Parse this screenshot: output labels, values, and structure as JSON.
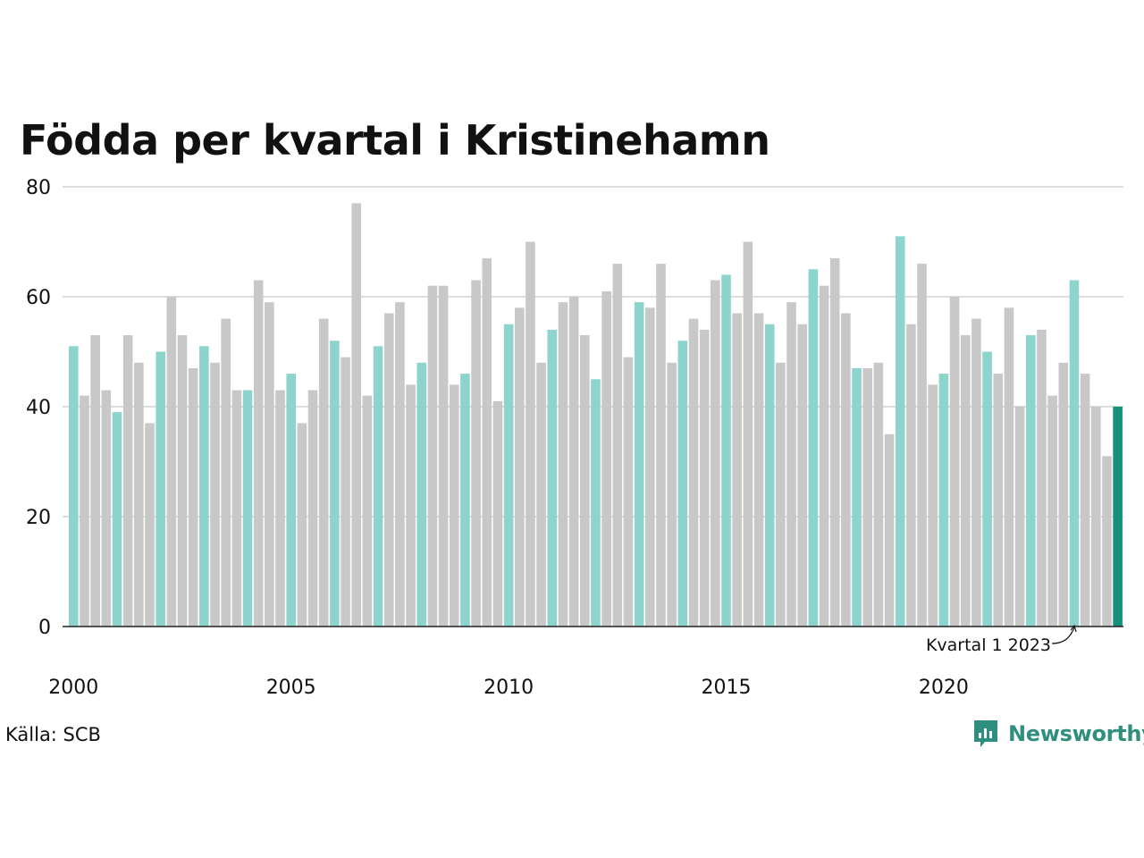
{
  "title": "Födda per kvartal i Kristinehamn",
  "source": "Källa: SCB",
  "brand": {
    "name": "Newsworthy",
    "logo_icon": "bar-chart-speech-bubble-icon"
  },
  "annotation": "Kvartal 1 2023",
  "colors": {
    "q1": "#8dd4cc",
    "other": "#c8c8c8",
    "highlight": "#16917d",
    "grid": "#dddddd",
    "axis": "#222222",
    "brand": "#2f8f7e"
  },
  "chart_data": {
    "type": "bar",
    "title": "Födda per kvartal i Kristinehamn",
    "x_tick_labels": [
      "2000",
      "2005",
      "2010",
      "2015",
      "2020"
    ],
    "y_tick_labels": [
      "0",
      "20",
      "40",
      "60",
      "80"
    ],
    "ylim": [
      0,
      80
    ],
    "grid": true,
    "highlight_index": 96,
    "first_quarter_color": "q1",
    "values": [
      51,
      42,
      53,
      43,
      39,
      53,
      48,
      37,
      50,
      60,
      53,
      47,
      51,
      48,
      56,
      43,
      43,
      63,
      59,
      43,
      46,
      37,
      43,
      56,
      52,
      49,
      77,
      42,
      51,
      57,
      59,
      44,
      48,
      62,
      62,
      44,
      46,
      63,
      67,
      41,
      55,
      58,
      70,
      48,
      54,
      59,
      60,
      53,
      45,
      61,
      66,
      49,
      59,
      58,
      66,
      48,
      52,
      56,
      54,
      63,
      64,
      57,
      70,
      57,
      55,
      48,
      59,
      55,
      65,
      62,
      67,
      57,
      47,
      47,
      48,
      35,
      71,
      55,
      66,
      44,
      46,
      60,
      53,
      56,
      50,
      46,
      58,
      40,
      53,
      54,
      42,
      48,
      63,
      46,
      40,
      31,
      40
    ]
  }
}
